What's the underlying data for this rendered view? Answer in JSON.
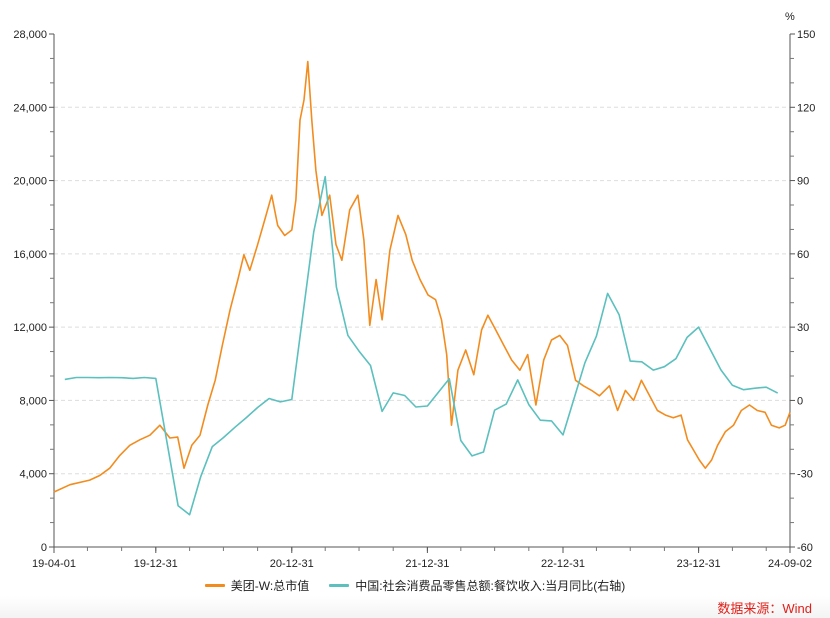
{
  "chart_data": {
    "type": "line",
    "x_tick_labels": [
      "19-04-01",
      "19-12-31",
      "20-12-31",
      "21-12-31",
      "22-12-31",
      "23-12-31",
      "24-09-02"
    ],
    "x_tick_dates": [
      "2019-04-01",
      "2019-12-31",
      "2020-12-31",
      "2021-12-31",
      "2022-12-31",
      "2023-12-31",
      "2024-09-02"
    ],
    "xlim": [
      "2019-04-01",
      "2024-09-02"
    ],
    "y_left": {
      "ticks": [
        "0",
        "4,000",
        "8,000",
        "12,000",
        "16,000",
        "20,000",
        "24,000",
        "28,000"
      ],
      "tick_values": [
        0,
        4000,
        8000,
        12000,
        16000,
        20000,
        24000,
        28000
      ],
      "ylim": [
        0,
        28000
      ]
    },
    "y_right": {
      "unit_label": "%",
      "ticks": [
        "-60",
        "-30",
        "0",
        "30",
        "60",
        "90",
        "120",
        "150"
      ],
      "tick_values": [
        -60,
        -30,
        0,
        30,
        60,
        90,
        120,
        150
      ],
      "ylim": [
        -60,
        150
      ]
    },
    "grid": "horizontal dashed",
    "legend_placement": "bottom",
    "series": [
      {
        "name": "美团-W:总市值",
        "axis": "left",
        "color": "#f28c1f",
        "points": [
          [
            "2019-04-01",
            3000
          ],
          [
            "2019-05-14",
            3400
          ],
          [
            "2019-07-06",
            3650
          ],
          [
            "2019-08-02",
            3900
          ],
          [
            "2019-08-29",
            4300
          ],
          [
            "2019-09-25",
            5000
          ],
          [
            "2019-10-22",
            5550
          ],
          [
            "2019-11-18",
            5850
          ],
          [
            "2019-12-15",
            6100
          ],
          [
            "2020-01-11",
            6650
          ],
          [
            "2020-02-07",
            5950
          ],
          [
            "2020-02-28",
            6000
          ],
          [
            "2020-03-16",
            4300
          ],
          [
            "2020-04-06",
            5550
          ],
          [
            "2020-04-28",
            6100
          ],
          [
            "2020-05-19",
            7750
          ],
          [
            "2020-06-08",
            9100
          ],
          [
            "2020-06-27",
            11000
          ],
          [
            "2020-07-18",
            12950
          ],
          [
            "2020-08-08",
            14600
          ],
          [
            "2020-08-24",
            15950
          ],
          [
            "2020-09-09",
            15100
          ],
          [
            "2020-09-30",
            16500
          ],
          [
            "2020-10-19",
            17850
          ],
          [
            "2020-11-07",
            19200
          ],
          [
            "2020-11-23",
            17550
          ],
          [
            "2020-12-12",
            17000
          ],
          [
            "2020-12-31",
            17300
          ],
          [
            "2021-01-11",
            18950
          ],
          [
            "2021-01-22",
            23300
          ],
          [
            "2021-02-02",
            24400
          ],
          [
            "2021-02-12",
            26500
          ],
          [
            "2021-02-23",
            23300
          ],
          [
            "2021-03-06",
            20550
          ],
          [
            "2021-03-22",
            18100
          ],
          [
            "2021-04-12",
            19200
          ],
          [
            "2021-04-29",
            16500
          ],
          [
            "2021-05-15",
            15650
          ],
          [
            "2021-06-05",
            18400
          ],
          [
            "2021-06-27",
            19200
          ],
          [
            "2021-07-13",
            16750
          ],
          [
            "2021-07-29",
            12100
          ],
          [
            "2021-08-15",
            14600
          ],
          [
            "2021-08-31",
            12400
          ],
          [
            "2021-09-21",
            16200
          ],
          [
            "2021-10-13",
            18100
          ],
          [
            "2021-11-03",
            17050
          ],
          [
            "2021-11-20",
            15650
          ],
          [
            "2021-12-11",
            14600
          ],
          [
            "2022-01-02",
            13750
          ],
          [
            "2022-01-22",
            13500
          ],
          [
            "2022-02-07",
            12400
          ],
          [
            "2022-02-21",
            10500
          ],
          [
            "2022-03-06",
            6650
          ],
          [
            "2022-03-23",
            9650
          ],
          [
            "2022-04-13",
            10750
          ],
          [
            "2022-05-05",
            9400
          ],
          [
            "2022-05-26",
            11850
          ],
          [
            "2022-06-12",
            12650
          ],
          [
            "2022-07-03",
            11850
          ],
          [
            "2022-07-25",
            11000
          ],
          [
            "2022-08-15",
            10200
          ],
          [
            "2022-09-06",
            9650
          ],
          [
            "2022-09-27",
            10500
          ],
          [
            "2022-10-19",
            7750
          ],
          [
            "2022-11-09",
            10200
          ],
          [
            "2022-11-30",
            11300
          ],
          [
            "2022-12-22",
            11550
          ],
          [
            "2023-01-12",
            11000
          ],
          [
            "2023-02-03",
            9100
          ],
          [
            "2023-02-24",
            8800
          ],
          [
            "2023-03-18",
            8550
          ],
          [
            "2023-04-08",
            8250
          ],
          [
            "2023-05-05",
            8800
          ],
          [
            "2023-05-27",
            7450
          ],
          [
            "2023-06-17",
            8550
          ],
          [
            "2023-07-09",
            8000
          ],
          [
            "2023-07-30",
            9100
          ],
          [
            "2023-08-21",
            8250
          ],
          [
            "2023-09-11",
            7450
          ],
          [
            "2023-10-03",
            7200
          ],
          [
            "2023-10-24",
            7050
          ],
          [
            "2023-11-14",
            7200
          ],
          [
            "2023-12-01",
            5850
          ],
          [
            "2023-12-17",
            5300
          ],
          [
            "2024-01-02",
            4750
          ],
          [
            "2024-01-18",
            4300
          ],
          [
            "2024-02-04",
            4750
          ],
          [
            "2024-02-20",
            5550
          ],
          [
            "2024-03-12",
            6300
          ],
          [
            "2024-04-03",
            6650
          ],
          [
            "2024-04-24",
            7450
          ],
          [
            "2024-05-16",
            7750
          ],
          [
            "2024-06-06",
            7450
          ],
          [
            "2024-06-27",
            7350
          ],
          [
            "2024-07-14",
            6650
          ],
          [
            "2024-08-04",
            6500
          ],
          [
            "2024-08-20",
            6650
          ],
          [
            "2024-09-02",
            7350
          ]
        ]
      },
      {
        "name": "中国:社会消费品零售总额:餐饮收入:当月同比(右轴)",
        "axis": "right",
        "color": "#5bc0be",
        "points": [
          [
            "2019-04-30",
            8.6
          ],
          [
            "2019-05-31",
            9.4
          ],
          [
            "2019-06-30",
            9.4
          ],
          [
            "2019-07-31",
            9.3
          ],
          [
            "2019-08-31",
            9.4
          ],
          [
            "2019-09-30",
            9.3
          ],
          [
            "2019-10-31",
            9.0
          ],
          [
            "2019-11-30",
            9.4
          ],
          [
            "2019-12-31",
            9.0
          ],
          [
            "2020-02-29",
            -43.1
          ],
          [
            "2020-03-31",
            -46.8
          ],
          [
            "2020-04-30",
            -31.1
          ],
          [
            "2020-05-31",
            -18.9
          ],
          [
            "2020-06-30",
            -15.2
          ],
          [
            "2020-07-31",
            -11.0
          ],
          [
            "2020-08-31",
            -7.0
          ],
          [
            "2020-09-30",
            -2.9
          ],
          [
            "2020-10-31",
            0.8
          ],
          [
            "2020-11-30",
            -0.6
          ],
          [
            "2020-12-31",
            0.4
          ],
          [
            "2021-02-28",
            68.9
          ],
          [
            "2021-03-31",
            91.6
          ],
          [
            "2021-04-30",
            46.4
          ],
          [
            "2021-05-31",
            26.6
          ],
          [
            "2021-06-30",
            20.2
          ],
          [
            "2021-07-31",
            14.3
          ],
          [
            "2021-08-31",
            -4.5
          ],
          [
            "2021-09-30",
            3.1
          ],
          [
            "2021-10-31",
            2.0
          ],
          [
            "2021-11-30",
            -2.7
          ],
          [
            "2021-12-31",
            -2.3
          ],
          [
            "2022-02-28",
            8.9
          ],
          [
            "2022-03-31",
            -16.4
          ],
          [
            "2022-04-30",
            -22.7
          ],
          [
            "2022-05-31",
            -21.1
          ],
          [
            "2022-06-30",
            -4.0
          ],
          [
            "2022-07-31",
            -1.5
          ],
          [
            "2022-08-31",
            8.4
          ],
          [
            "2022-09-30",
            -1.7
          ],
          [
            "2022-10-31",
            -8.1
          ],
          [
            "2022-11-30",
            -8.4
          ],
          [
            "2022-12-31",
            -14.1
          ],
          [
            "2023-02-28",
            15.4
          ],
          [
            "2023-03-31",
            26.3
          ],
          [
            "2023-04-30",
            43.8
          ],
          [
            "2023-05-31",
            35.1
          ],
          [
            "2023-06-30",
            16.1
          ],
          [
            "2023-07-31",
            15.8
          ],
          [
            "2023-08-31",
            12.4
          ],
          [
            "2023-09-30",
            13.8
          ],
          [
            "2023-10-31",
            17.1
          ],
          [
            "2023-11-30",
            25.8
          ],
          [
            "2023-12-31",
            30.0
          ],
          [
            "2024-02-29",
            12.5
          ],
          [
            "2024-03-31",
            6.2
          ],
          [
            "2024-04-30",
            4.4
          ],
          [
            "2024-05-31",
            5.0
          ],
          [
            "2024-06-30",
            5.4
          ],
          [
            "2024-07-31",
            3.0
          ]
        ]
      }
    ]
  },
  "legend": {
    "items": [
      {
        "label": "美团-W:总市值",
        "color": "#f28c1f"
      },
      {
        "label": "中国:社会消费品零售总额:餐饮收入:当月同比(右轴)",
        "color": "#5bc0be"
      }
    ]
  },
  "source": "数据来源：Wind"
}
